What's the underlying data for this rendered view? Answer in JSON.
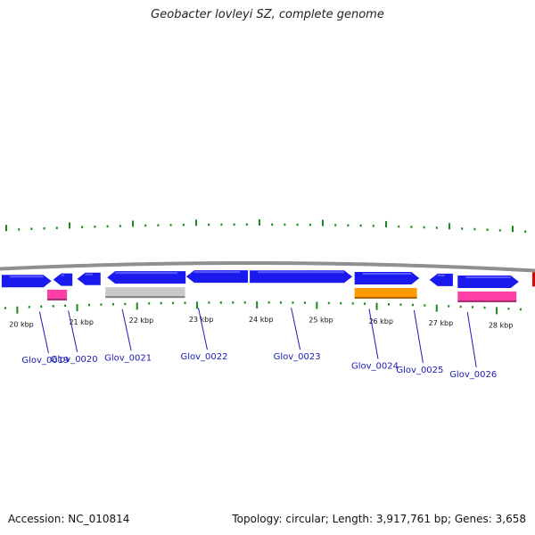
{
  "title": "Geobacter lovleyi SZ, complete genome",
  "footer": {
    "accession": "Accession: NC_010814",
    "stats": "Topology: circular; Length: 3,917,761 bp; Genes: 3,658"
  },
  "colors": {
    "forward_gene": "#1a1aee",
    "rna_pink": "#ff3fa6",
    "pseudo_gray": "#c8c8c8",
    "orange_gene": "#ff9a00",
    "label_blue": "#1a1ab4",
    "tick_green": "#1a8a1a",
    "backbone": "#8f8f8f"
  },
  "chart_data": {
    "type": "linear_genome_map",
    "x_unit": "kbp",
    "scale_labels": [
      {
        "kbp": 20,
        "text": "20 kbp"
      },
      {
        "kbp": 21,
        "text": "21 kbp"
      },
      {
        "kbp": 22,
        "text": "22 kbp"
      },
      {
        "kbp": 23,
        "text": "23 kbp"
      },
      {
        "kbp": 24,
        "text": "24 kbp"
      },
      {
        "kbp": 25,
        "text": "25 kbp"
      },
      {
        "kbp": 26,
        "text": "26 kbp"
      },
      {
        "kbp": 27,
        "text": "27 kbp"
      },
      {
        "kbp": 28,
        "text": "28 kbp"
      }
    ],
    "features": [
      {
        "kind": "cds",
        "start": 19.79,
        "end": 20.62,
        "strand": "+"
      },
      {
        "kind": "cds",
        "start": 20.65,
        "end": 20.97,
        "strand": "-"
      },
      {
        "kind": "cds",
        "start": 21.05,
        "end": 21.44,
        "strand": "-"
      },
      {
        "kind": "cds",
        "start": 21.55,
        "end": 22.86,
        "strand": "-"
      },
      {
        "kind": "cds",
        "start": 22.87,
        "end": 23.9,
        "strand": "-"
      },
      {
        "kind": "cds",
        "start": 23.93,
        "end": 25.64,
        "strand": "+"
      },
      {
        "kind": "cds",
        "start": 25.68,
        "end": 26.76,
        "strand": "+"
      },
      {
        "kind": "cds",
        "start": 26.93,
        "end": 27.32,
        "strand": "-"
      },
      {
        "kind": "cds",
        "start": 27.4,
        "end": 28.42,
        "strand": "+"
      },
      {
        "kind": "rna",
        "start": 20.55,
        "end": 20.88,
        "strand": "."
      },
      {
        "kind": "pseudo",
        "start": 21.52,
        "end": 22.85,
        "strand": "."
      },
      {
        "kind": "orange",
        "start": 25.68,
        "end": 26.72,
        "strand": "."
      },
      {
        "kind": "rna",
        "start": 27.4,
        "end": 28.38,
        "strand": "."
      }
    ],
    "gene_labels": [
      {
        "text": "Glov_0019",
        "kbp": 20.72
      },
      {
        "text": "Glov_0020",
        "kbp": 21.2
      },
      {
        "text": "Glov_0021",
        "kbp": 22.1
      },
      {
        "text": "Glov_0022",
        "kbp": 23.37
      },
      {
        "text": "Glov_0023",
        "kbp": 24.92
      },
      {
        "text": "Glov_0024",
        "kbp": 26.22
      },
      {
        "text": "Glov_0025",
        "kbp": 26.97
      },
      {
        "text": "Glov_0026",
        "kbp": 27.86
      }
    ]
  }
}
